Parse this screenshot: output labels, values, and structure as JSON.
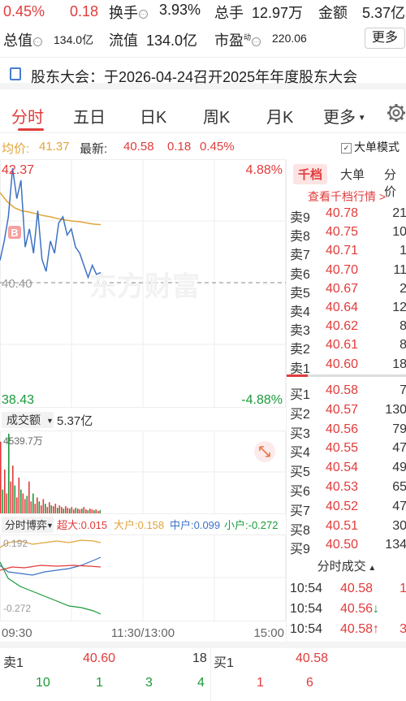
{
  "stats": {
    "change_pct": "0.45%",
    "change_amt": "0.18",
    "turnover_label": "换手",
    "turnover": "3.93%",
    "volume_label": "总手",
    "volume": "12.97万",
    "amount_label": "金额",
    "amount": "5.37亿",
    "mkt_cap_label": "总值",
    "mkt_cap": "134.0亿",
    "float_cap_label": "流值",
    "float_cap": "134.0亿",
    "pe_label": "市盈",
    "pe_sup": "动",
    "pe": "220.06",
    "more_label": "更多"
  },
  "announcement": {
    "text": "股东大会：于2026-04-24召开2025年年度股东大会"
  },
  "tabs": [
    {
      "label": "分时"
    },
    {
      "label": "五日"
    },
    {
      "label": "日K"
    },
    {
      "label": "周K"
    },
    {
      "label": "月K"
    },
    {
      "label": "更多"
    }
  ],
  "strip": {
    "avg_label": "均价:",
    "avg": "41.37",
    "last_label": "最新:",
    "last": "40.58",
    "chg": "0.18",
    "pct": "0.45%",
    "bigorder_label": "大单模式"
  },
  "chart_data": {
    "type": "line",
    "price_high": "42.37",
    "price_base": "40.40",
    "price_low": "38.43",
    "pct_high": "4.88%",
    "pct_low": "-4.88%",
    "ylim": [
      38.43,
      42.37
    ],
    "base": 40.4,
    "watermark": "东方财富",
    "trade_marker": "B",
    "price_series": [
      40.78,
      41.1,
      41.5,
      42.3,
      41.8,
      42.1,
      41.0,
      41.3,
      40.9,
      41.6,
      40.8,
      40.6,
      41.1,
      40.9,
      41.4,
      41.5,
      41.2,
      41.3,
      41.0,
      40.9,
      40.7,
      40.5,
      40.7,
      40.55,
      40.58
    ],
    "avg_series": [
      41.9,
      41.75,
      41.65,
      41.6,
      41.58,
      41.55,
      41.52,
      41.5,
      41.47,
      41.45,
      41.43,
      41.42,
      41.4,
      41.38,
      41.37
    ],
    "volume_label": "成交额",
    "volume_total": "5.37亿",
    "volume_max": "4539.7万",
    "volume_bars": [
      90,
      30,
      55,
      25,
      100,
      40,
      60,
      35,
      20,
      45,
      30,
      25,
      18,
      22,
      40,
      15,
      25,
      12,
      20,
      15,
      10,
      18,
      12,
      8,
      14,
      10,
      9,
      12,
      7,
      10,
      8,
      6,
      9,
      7,
      6,
      8,
      5,
      7,
      6,
      5,
      6,
      8,
      5,
      4,
      6,
      5,
      4,
      5,
      3,
      4
    ],
    "flow_label": "分时博弈",
    "flow_super": "超大:0.015",
    "flow_big": "大户:0.158",
    "flow_mid": "中户:0.099",
    "flow_small": "小户:-0.272",
    "flow_high": "0.192",
    "flow_low": "-0.272",
    "x_ticks": [
      "09:30",
      "11:30/13:00",
      "15:00"
    ]
  },
  "book": {
    "tab_qd": "千档",
    "tab_dd": "大单",
    "tab_fj": "分价",
    "more": "查看千档行情 >",
    "asks": [
      {
        "label": "卖9",
        "price": "40.78",
        "vol": "21"
      },
      {
        "label": "卖8",
        "price": "40.75",
        "vol": "10"
      },
      {
        "label": "卖7",
        "price": "40.71",
        "vol": "1"
      },
      {
        "label": "卖6",
        "price": "40.70",
        "vol": "11"
      },
      {
        "label": "卖5",
        "price": "40.67",
        "vol": "2"
      },
      {
        "label": "卖4",
        "price": "40.64",
        "vol": "12"
      },
      {
        "label": "卖3",
        "price": "40.62",
        "vol": "8"
      },
      {
        "label": "卖2",
        "price": "40.61",
        "vol": "8"
      },
      {
        "label": "卖1",
        "price": "40.60",
        "vol": "18"
      }
    ],
    "bids": [
      {
        "label": "买1",
        "price": "40.58",
        "vol": "7"
      },
      {
        "label": "买2",
        "price": "40.57",
        "vol": "130"
      },
      {
        "label": "买3",
        "price": "40.56",
        "vol": "79"
      },
      {
        "label": "买4",
        "price": "40.55",
        "vol": "47"
      },
      {
        "label": "买5",
        "price": "40.54",
        "vol": "49"
      },
      {
        "label": "买6",
        "price": "40.53",
        "vol": "65"
      },
      {
        "label": "买7",
        "price": "40.52",
        "vol": "47"
      },
      {
        "label": "买8",
        "price": "40.51",
        "vol": "30"
      },
      {
        "label": "买9",
        "price": "40.50",
        "vol": "134"
      }
    ],
    "fs_title": "分时成交",
    "trades": [
      {
        "time": "10:54",
        "price": "40.58",
        "arrow": "",
        "vol": "1"
      },
      {
        "time": "10:54",
        "price": "40.56",
        "arrow": "↓",
        "vol": ""
      },
      {
        "time": "10:54",
        "price": "40.58",
        "arrow": "↑",
        "vol": "3"
      }
    ]
  },
  "bottom": {
    "sell_label": "卖1",
    "sell_price": "40.60",
    "sell_vol": "18",
    "buy_label": "买1",
    "buy_price": "40.58",
    "sell_nums": [
      "10",
      "1",
      "3",
      "4"
    ],
    "buy_nums": [
      "1",
      "6"
    ]
  },
  "colors": {
    "up": "#e23b3b",
    "down": "#1a9a3a",
    "price_line": "#3d72c4",
    "avg_line": "#e0a53a"
  }
}
